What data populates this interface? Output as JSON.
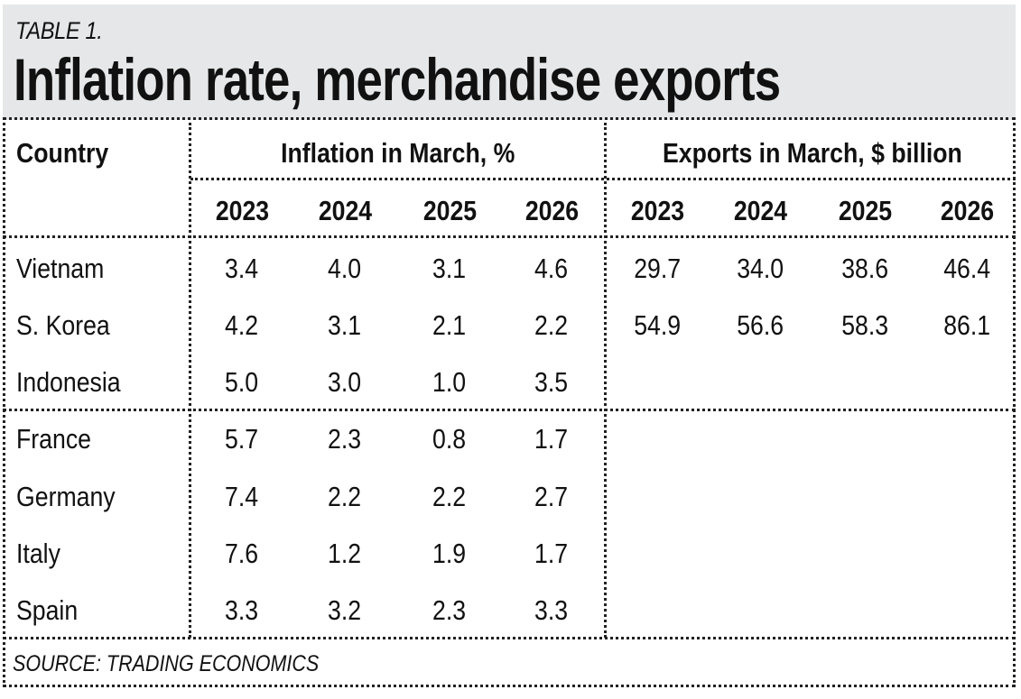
{
  "header": {
    "kicker": "TABLE 1.",
    "title": "Inflation rate, merchandise exports",
    "background_color": "#e6e7e8"
  },
  "columns": {
    "country_label": "Country",
    "groups": [
      {
        "label": "Inflation in March, %",
        "years": [
          "2023",
          "2024",
          "2025",
          "2026"
        ]
      },
      {
        "label": "Exports in March, $ billion",
        "years": [
          "2023",
          "2024",
          "2025",
          "2026"
        ]
      }
    ]
  },
  "rows": [
    {
      "country": "Vietnam",
      "inflation": [
        "3.4",
        "4.0",
        "3.1",
        "4.6"
      ],
      "exports": [
        "29.7",
        "34.0",
        "38.6",
        "46.4"
      ]
    },
    {
      "country": "S. Korea",
      "inflation": [
        "4.2",
        "3.1",
        "2.1",
        "2.2"
      ],
      "exports": [
        "54.9",
        "56.6",
        "58.3",
        "86.1"
      ]
    },
    {
      "country": "Indonesia",
      "inflation": [
        "5.0",
        "3.0",
        "1.0",
        "3.5"
      ],
      "exports": [
        "",
        "",
        "",
        ""
      ]
    },
    {
      "country": "France",
      "inflation": [
        "5.7",
        "2.3",
        "0.8",
        "1.7"
      ],
      "exports": [
        "",
        "",
        "",
        ""
      ]
    },
    {
      "country": "Germany",
      "inflation": [
        "7.4",
        "2.2",
        "2.2",
        "2.7"
      ],
      "exports": [
        "",
        "",
        "",
        ""
      ]
    },
    {
      "country": "Italy",
      "inflation": [
        "7.6",
        "1.2",
        "1.9",
        "1.7"
      ],
      "exports": [
        "",
        "",
        "",
        ""
      ]
    },
    {
      "country": "Spain",
      "inflation": [
        "3.3",
        "3.2",
        "2.3",
        "3.3"
      ],
      "exports": [
        "",
        "",
        "",
        ""
      ]
    }
  ],
  "source": "SOURCE: TRADING ECONOMICS"
}
